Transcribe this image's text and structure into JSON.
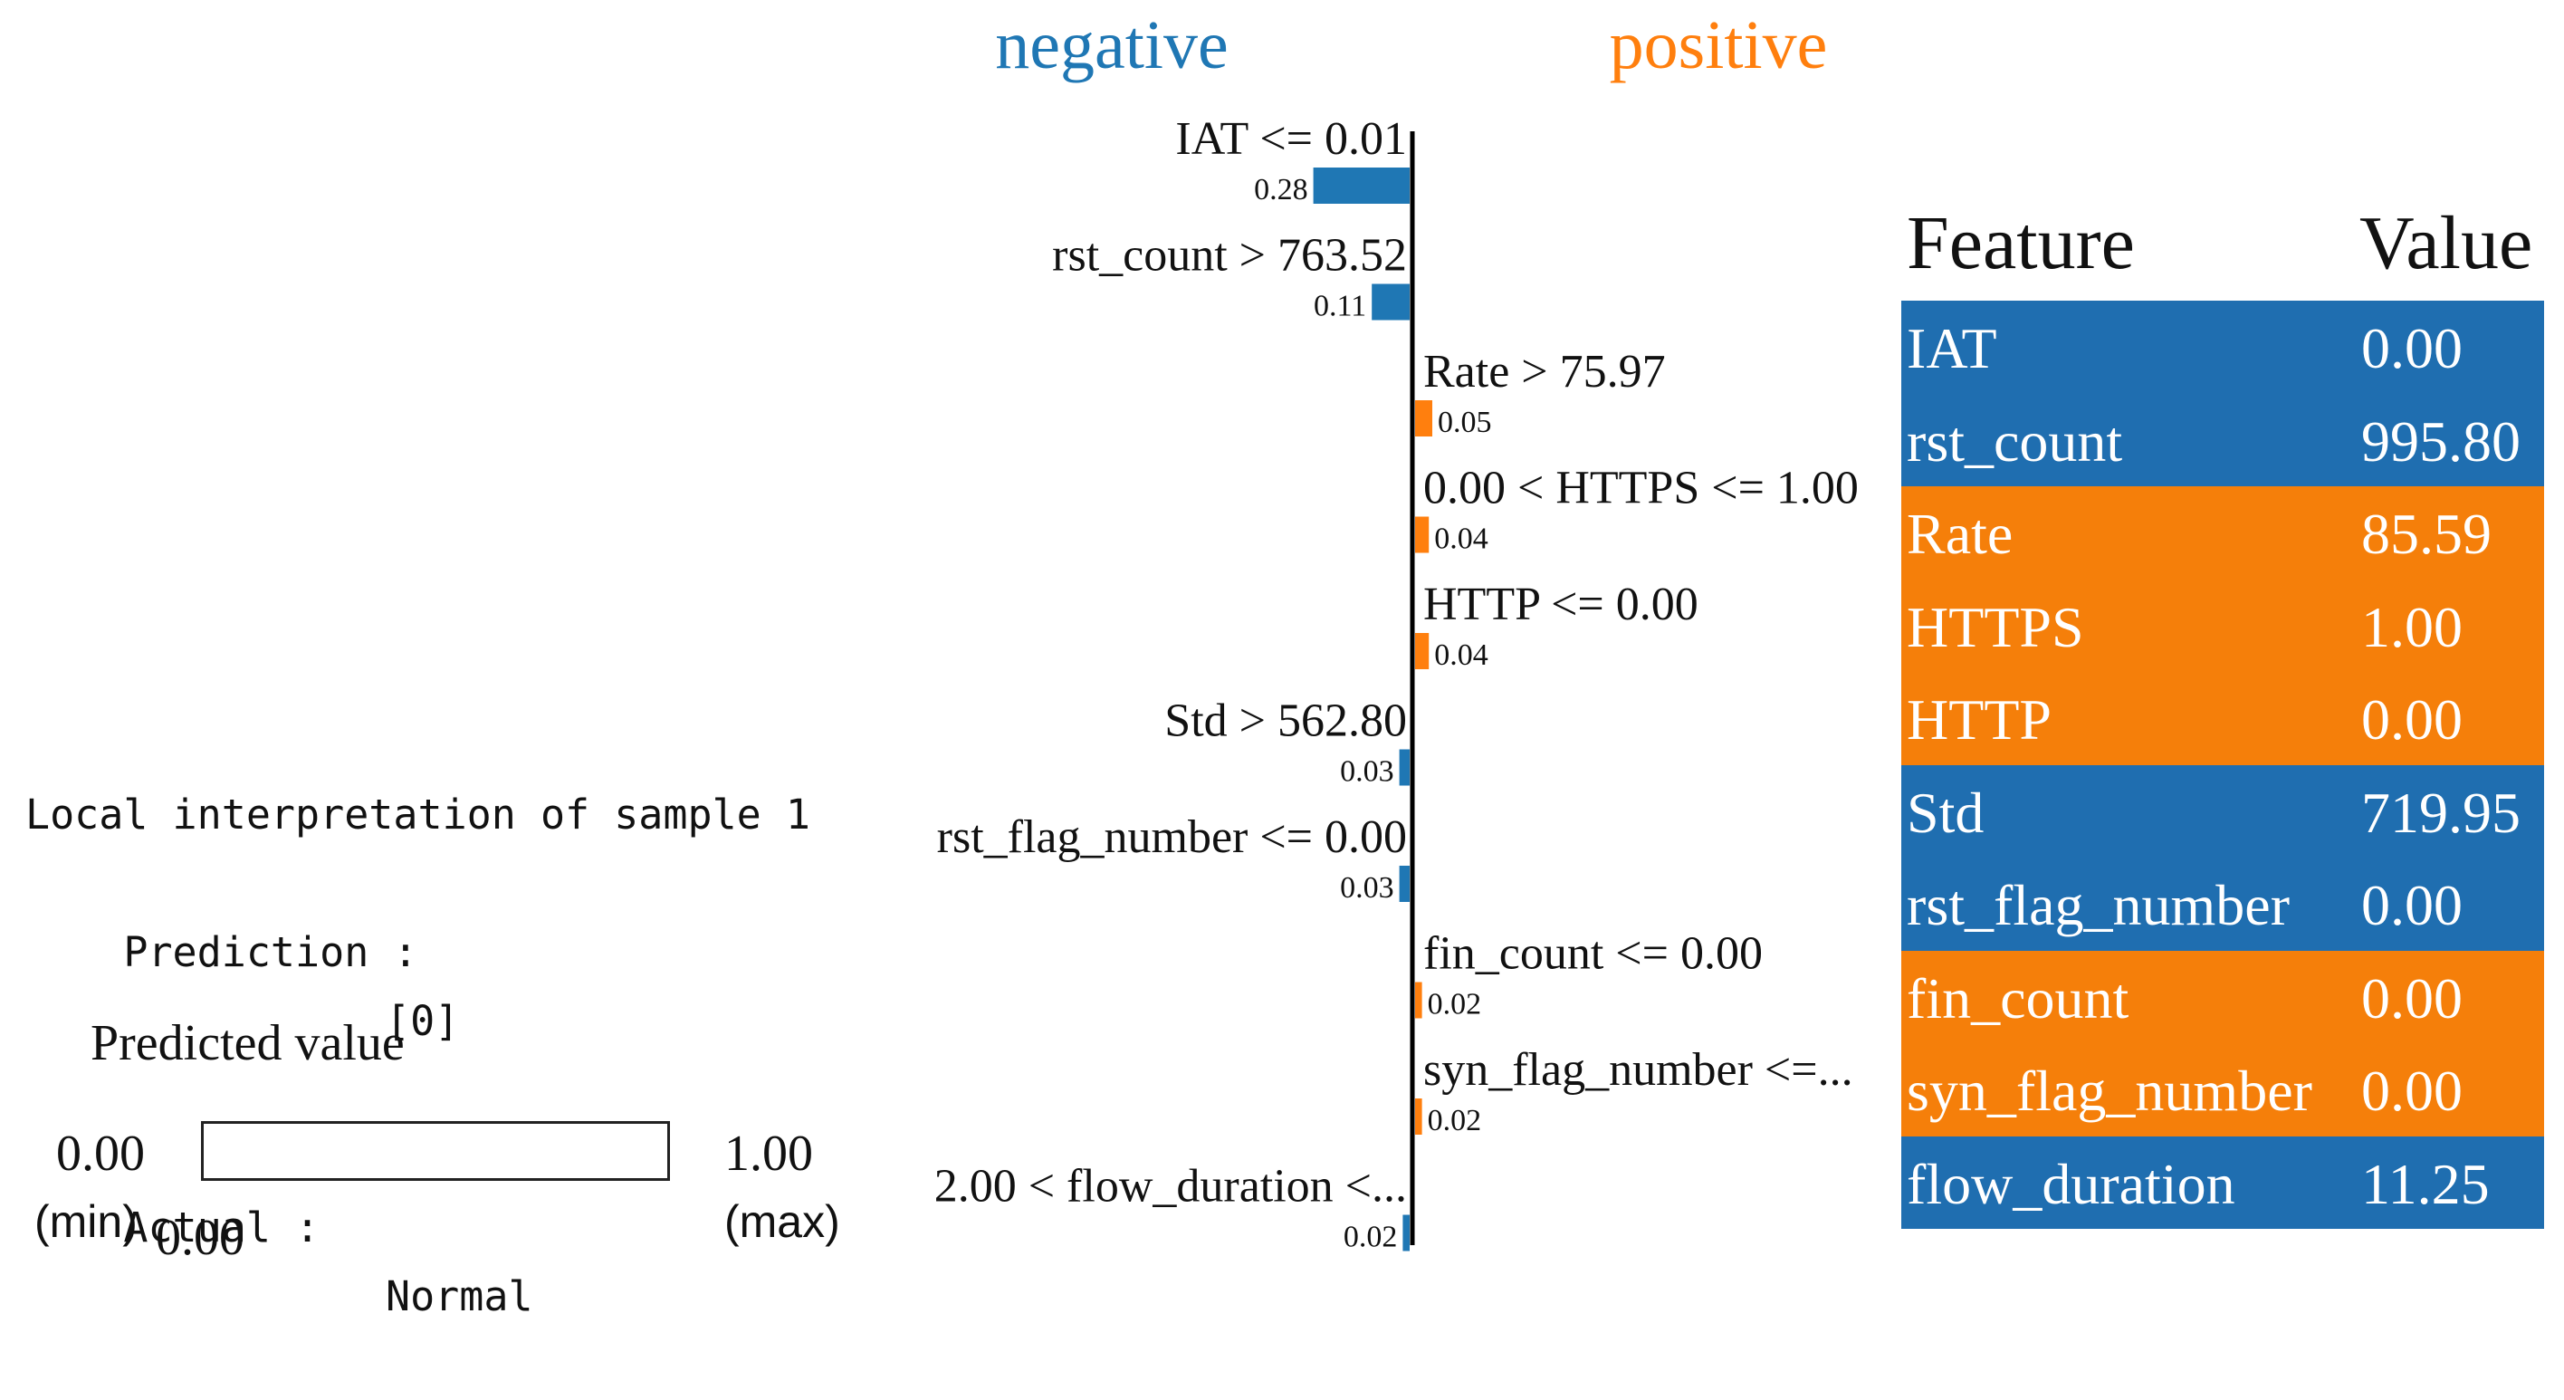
{
  "colors": {
    "negative": "#1f77b4",
    "positive": "#ff7f0e",
    "table_negative": "#1f6eb0",
    "table_positive": "#f57f0a"
  },
  "info": {
    "title": "Local interpretation of sample 1",
    "prediction_label": "Prediction :",
    "prediction_value": "[0]",
    "actual_label": "Actual :",
    "actual_value": "Normal"
  },
  "predicted": {
    "title": "Predicted value",
    "min_value": "0.00",
    "min_label": "(min)",
    "max_value": "1.00",
    "max_label": "(max)",
    "value": "0.00",
    "fraction": 0.0
  },
  "chart_data": {
    "type": "bar",
    "orientation": "horizontal",
    "labels": {
      "negative": "negative",
      "positive": "positive"
    },
    "categories": [
      "IAT <= 0.01",
      "rst_count > 763.52",
      "Rate > 75.97",
      "0.00 < HTTPS <= 1.00",
      "HTTP <= 0.00",
      "Std > 562.80",
      "rst_flag_number <= 0.00",
      "fin_count <= 0.00",
      "syn_flag_number <=...",
      "2.00 < flow_duration <..."
    ],
    "values": [
      0.28,
      0.11,
      0.05,
      0.04,
      0.04,
      0.03,
      0.03,
      0.02,
      0.02,
      0.02
    ],
    "value_labels": [
      "0.28",
      "0.11",
      "0.05",
      "0.04",
      "0.04",
      "0.03",
      "0.03",
      "0.02",
      "0.02",
      "0.02"
    ],
    "sides": [
      "negative",
      "negative",
      "positive",
      "positive",
      "positive",
      "negative",
      "negative",
      "positive",
      "positive",
      "negative"
    ]
  },
  "table": {
    "headers": [
      "Feature",
      "Value"
    ],
    "rows": [
      {
        "feature": "IAT",
        "value": "0.00",
        "side": "negative"
      },
      {
        "feature": "rst_count",
        "value": "995.80",
        "side": "negative"
      },
      {
        "feature": "Rate",
        "value": "85.59",
        "side": "positive"
      },
      {
        "feature": "HTTPS",
        "value": "1.00",
        "side": "positive"
      },
      {
        "feature": "HTTP",
        "value": "0.00",
        "side": "positive"
      },
      {
        "feature": "Std",
        "value": "719.95",
        "side": "negative"
      },
      {
        "feature": "rst_flag_number",
        "value": "0.00",
        "side": "negative"
      },
      {
        "feature": "fin_count",
        "value": "0.00",
        "side": "positive"
      },
      {
        "feature": "syn_flag_number",
        "value": "0.00",
        "side": "positive"
      },
      {
        "feature": "flow_duration",
        "value": "11.25",
        "side": "negative"
      }
    ]
  }
}
